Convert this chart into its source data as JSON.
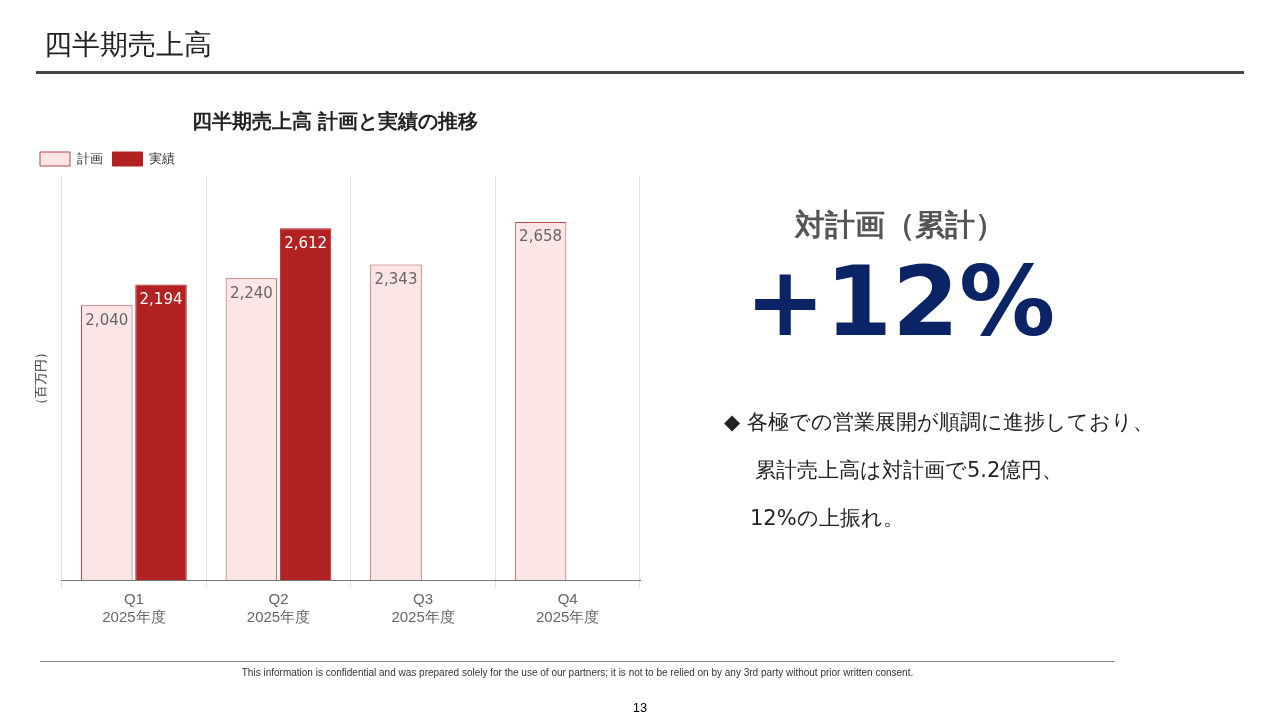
{
  "chart_data": [
    {
      "type": "bar",
      "title": "四半期売上高 計画と実績の推移",
      "ylabel": "（百万円）",
      "categories": [
        "Q1\n2025年度",
        "Q2\n2025年度",
        "Q3\n2025年度",
        "Q4\n2025年度"
      ],
      "series": [
        {
          "name": "計画",
          "color": "#fbe5e5",
          "values": [
            2040,
            2240,
            2343,
            2658
          ],
          "value_labels": [
            "2,040",
            "2,240",
            "2,343",
            "2,658"
          ]
        },
        {
          "name": "実績",
          "color": "#b22222",
          "values": [
            2194,
            2612,
            null,
            null
          ],
          "value_labels": [
            "2,194",
            "2,612",
            null,
            null
          ]
        }
      ],
      "relative": false,
      "grid": "x",
      "legend": "top left",
      "annotations": [
        "四半期売上高",
        "This information is confidential and was prepared solely for the use of our partners; it is not to be relied on by any 3rd party without prior written consent.",
        "13"
      ]
    },
    {
      "type": "other",
      "title": "対計画（累計）",
      "annotations": [
        "+12%",
        "◆ 各極での営業展開が順調に進捗しており、",
        "累計売上高は対計画で5.2億円、",
        "12%の上振れ。"
      ]
    }
  ]
}
